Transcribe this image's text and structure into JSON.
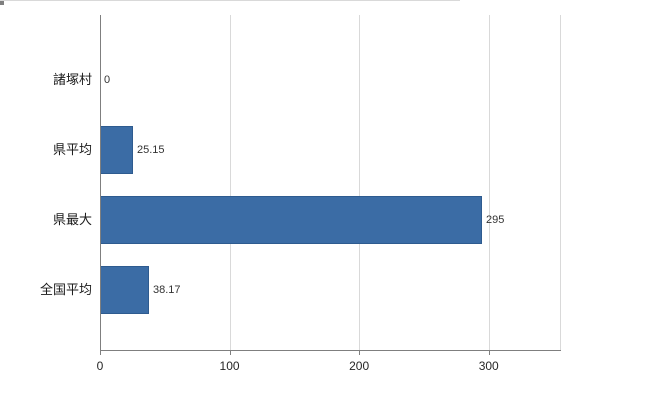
{
  "chart_data": {
    "type": "bar",
    "orientation": "horizontal",
    "title": "",
    "xlabel": "",
    "ylabel": "",
    "categories": [
      "諸塚村",
      "県平均",
      "県最大",
      "全国平均"
    ],
    "values": [
      0,
      25.15,
      295,
      38.17
    ],
    "value_labels": [
      "0",
      "25.15",
      "295",
      "38.17"
    ],
    "xticks": [
      0,
      100,
      200,
      300
    ],
    "xtick_labels": [
      "0",
      "100",
      "200",
      "300"
    ],
    "xlim": [
      0,
      355
    ],
    "grid": "vertical",
    "legend": "none",
    "bar_color": "#3b6ca5",
    "bar_border_color": "#2e5b8f",
    "gridline_color": "#d9d9d9",
    "axis_color": "#7f7f7f",
    "text_color": "#262626"
  }
}
